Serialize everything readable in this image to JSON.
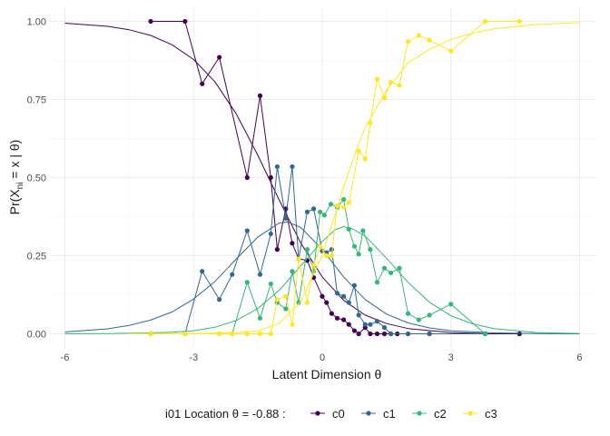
{
  "chart_data": {
    "type": "line",
    "xlabel": "Latent Dimension θ",
    "ylabel": {
      "prefix": "Pr(X",
      "sub": "ni",
      "suffix": " = x | θ)"
    },
    "xlim": [
      -6.35,
      6.35
    ],
    "ylim": [
      -0.045,
      1.045
    ],
    "xticks": [
      -6,
      -3,
      0,
      3,
      6
    ],
    "xtick_labels": [
      "-6",
      "-3",
      "0",
      "3",
      "6"
    ],
    "yticks": [
      0,
      0.25,
      0.5,
      0.75,
      1.0
    ],
    "ytick_labels": [
      "0.00",
      "0.25",
      "0.50",
      "0.75",
      "1.00"
    ],
    "grid": true,
    "legend": {
      "position": "bottom",
      "title": "i01 Location  θ = -0.88 :",
      "entries": [
        "c0",
        "c1",
        "c2",
        "c3"
      ]
    },
    "series": [
      {
        "name": "c0",
        "color": "#440154",
        "empirical": [
          [
            -4.0,
            1.0
          ],
          [
            -3.2,
            1.0
          ],
          [
            -2.8,
            0.8
          ],
          [
            -2.4,
            0.885
          ],
          [
            -1.75,
            0.5
          ],
          [
            -1.45,
            0.762
          ],
          [
            -1.2,
            0.5
          ],
          [
            -1.05,
            0.27
          ],
          [
            -0.85,
            0.4
          ],
          [
            -0.7,
            0.29
          ],
          [
            -0.55,
            0.24
          ],
          [
            -0.35,
            0.235
          ],
          [
            -0.2,
            0.18
          ],
          [
            0.0,
            0.12
          ],
          [
            0.1,
            0.1
          ],
          [
            0.22,
            0.065
          ],
          [
            0.35,
            0.05
          ],
          [
            0.5,
            0.045
          ],
          [
            0.62,
            0.03
          ],
          [
            0.75,
            0.01
          ],
          [
            0.85,
            0.0
          ],
          [
            1.0,
            0.02
          ],
          [
            1.12,
            0.0
          ],
          [
            1.28,
            0.0
          ],
          [
            1.45,
            0.0
          ],
          [
            1.6,
            0.0
          ],
          [
            1.75,
            0.0
          ],
          [
            2.0,
            0.0
          ],
          [
            2.5,
            0.0
          ],
          [
            3.8,
            0.0
          ],
          [
            4.6,
            0.0
          ]
        ],
        "model": [
          [
            -6.0,
            0.994
          ],
          [
            -5.0,
            0.984
          ],
          [
            -4.5,
            0.973
          ],
          [
            -4.0,
            0.955
          ],
          [
            -3.5,
            0.925
          ],
          [
            -3.0,
            0.878
          ],
          [
            -2.5,
            0.806
          ],
          [
            -2.0,
            0.703
          ],
          [
            -1.5,
            0.571
          ],
          [
            -1.0,
            0.427
          ],
          [
            -0.5,
            0.29
          ],
          [
            0.0,
            0.182
          ],
          [
            0.5,
            0.107
          ],
          [
            1.0,
            0.06
          ],
          [
            1.5,
            0.033
          ],
          [
            2.0,
            0.017
          ],
          [
            3.0,
            0.004
          ],
          [
            3.8,
            0.001
          ]
        ]
      },
      {
        "name": "c1",
        "color": "#31688E",
        "empirical": [
          [
            -4.0,
            0.0
          ],
          [
            -3.2,
            0.0
          ],
          [
            -2.8,
            0.2
          ],
          [
            -2.4,
            0.11
          ],
          [
            -2.1,
            0.19
          ],
          [
            -1.75,
            0.33
          ],
          [
            -1.45,
            0.19
          ],
          [
            -1.2,
            0.32
          ],
          [
            -1.05,
            0.535
          ],
          [
            -0.85,
            0.37
          ],
          [
            -0.7,
            0.535
          ],
          [
            -0.55,
            0.24
          ],
          [
            -0.35,
            0.39
          ],
          [
            -0.2,
            0.4
          ],
          [
            0.0,
            0.265
          ],
          [
            0.1,
            0.26
          ],
          [
            0.22,
            0.27
          ],
          [
            0.35,
            0.13
          ],
          [
            0.5,
            0.12
          ],
          [
            0.62,
            0.1
          ],
          [
            0.75,
            0.155
          ],
          [
            0.85,
            0.06
          ],
          [
            1.0,
            0.03
          ],
          [
            1.12,
            0.03
          ],
          [
            1.28,
            0.04
          ],
          [
            1.45,
            0.02
          ],
          [
            1.6,
            0.0
          ],
          [
            2.0,
            0.0
          ],
          [
            2.5,
            0.0
          ],
          [
            3.8,
            0.0
          ]
        ],
        "model": [
          [
            -6.0,
            0.006
          ],
          [
            -5.0,
            0.016
          ],
          [
            -4.5,
            0.027
          ],
          [
            -4.0,
            0.044
          ],
          [
            -3.5,
            0.07
          ],
          [
            -3.0,
            0.111
          ],
          [
            -2.5,
            0.168
          ],
          [
            -2.0,
            0.24
          ],
          [
            -1.5,
            0.31
          ],
          [
            -1.0,
            0.355
          ],
          [
            -0.8,
            0.358
          ],
          [
            -0.5,
            0.34
          ],
          [
            0.0,
            0.27
          ],
          [
            0.5,
            0.182
          ],
          [
            1.0,
            0.11
          ],
          [
            1.5,
            0.063
          ],
          [
            2.0,
            0.035
          ],
          [
            2.5,
            0.019
          ],
          [
            3.0,
            0.01
          ],
          [
            4.0,
            0.003
          ],
          [
            5.0,
            0.001
          ],
          [
            6.0,
            0.0
          ]
        ]
      },
      {
        "name": "c2",
        "color": "#35B779",
        "empirical": [
          [
            -4.0,
            0.0
          ],
          [
            -3.2,
            0.0
          ],
          [
            -2.4,
            0.0
          ],
          [
            -2.1,
            0.0
          ],
          [
            -1.75,
            0.165
          ],
          [
            -1.45,
            0.05
          ],
          [
            -1.2,
            0.16
          ],
          [
            -1.05,
            0.1
          ],
          [
            -0.85,
            0.08
          ],
          [
            -0.7,
            0.2
          ],
          [
            -0.55,
            0.1
          ],
          [
            -0.35,
            0.27
          ],
          [
            -0.2,
            0.2
          ],
          [
            -0.05,
            0.39
          ],
          [
            0.05,
            0.38
          ],
          [
            0.2,
            0.415
          ],
          [
            0.35,
            0.405
          ],
          [
            0.5,
            0.43
          ],
          [
            0.62,
            0.335
          ],
          [
            0.75,
            0.28
          ],
          [
            0.85,
            0.255
          ],
          [
            0.95,
            0.33
          ],
          [
            1.12,
            0.27
          ],
          [
            1.28,
            0.165
          ],
          [
            1.45,
            0.21
          ],
          [
            1.6,
            0.195
          ],
          [
            1.8,
            0.21
          ],
          [
            2.0,
            0.065
          ],
          [
            2.25,
            0.045
          ],
          [
            2.5,
            0.06
          ],
          [
            3.0,
            0.095
          ],
          [
            3.8,
            0.0
          ]
        ],
        "model": [
          [
            -6.0,
            0.0
          ],
          [
            -5.0,
            0.001
          ],
          [
            -4.0,
            0.003
          ],
          [
            -3.5,
            0.005
          ],
          [
            -3.0,
            0.01
          ],
          [
            -2.5,
            0.021
          ],
          [
            -2.0,
            0.043
          ],
          [
            -1.5,
            0.081
          ],
          [
            -1.0,
            0.14
          ],
          [
            -0.5,
            0.218
          ],
          [
            0.0,
            0.296
          ],
          [
            0.3,
            0.333
          ],
          [
            0.5,
            0.343
          ],
          [
            0.7,
            0.336
          ],
          [
            1.0,
            0.313
          ],
          [
            1.5,
            0.242
          ],
          [
            2.0,
            0.165
          ],
          [
            2.5,
            0.101
          ],
          [
            3.0,
            0.058
          ],
          [
            3.5,
            0.032
          ],
          [
            4.0,
            0.017
          ],
          [
            5.0,
            0.004
          ],
          [
            6.0,
            0.001
          ]
        ]
      },
      {
        "name": "c3",
        "color": "#FDE725",
        "empirical": [
          [
            -4.0,
            0.0
          ],
          [
            -3.2,
            0.0
          ],
          [
            -2.4,
            0.0
          ],
          [
            -2.1,
            0.0
          ],
          [
            -1.75,
            0.0
          ],
          [
            -1.45,
            0.0
          ],
          [
            -1.2,
            0.0
          ],
          [
            -1.05,
            0.11
          ],
          [
            -0.85,
            0.12
          ],
          [
            -0.7,
            0.03
          ],
          [
            -0.55,
            0.24
          ],
          [
            -0.35,
            0.1
          ],
          [
            -0.2,
            0.22
          ],
          [
            -0.05,
            0.28
          ],
          [
            0.1,
            0.25
          ],
          [
            0.22,
            0.25
          ],
          [
            0.35,
            0.41
          ],
          [
            0.5,
            0.405
          ],
          [
            0.62,
            0.42
          ],
          [
            0.85,
            0.585
          ],
          [
            1.0,
            0.56
          ],
          [
            1.12,
            0.675
          ],
          [
            1.28,
            0.815
          ],
          [
            1.45,
            0.755
          ],
          [
            1.6,
            0.805
          ],
          [
            1.8,
            0.795
          ],
          [
            2.0,
            0.935
          ],
          [
            2.25,
            0.955
          ],
          [
            2.5,
            0.94
          ],
          [
            3.0,
            0.905
          ],
          [
            3.8,
            1.0
          ],
          [
            4.6,
            1.0
          ]
        ],
        "model": [
          [
            -4.5,
            0.0
          ],
          [
            -4.0,
            0.001
          ],
          [
            -3.0,
            0.001
          ],
          [
            -2.5,
            0.002
          ],
          [
            -2.0,
            0.004
          ],
          [
            -1.5,
            0.01
          ],
          [
            -1.0,
            0.034
          ],
          [
            -0.5,
            0.103
          ],
          [
            0.0,
            0.252
          ],
          [
            0.3,
            0.38
          ],
          [
            0.5,
            0.47
          ],
          [
            0.8,
            0.59
          ],
          [
            1.0,
            0.66
          ],
          [
            1.5,
            0.78
          ],
          [
            2.0,
            0.867
          ],
          [
            2.5,
            0.91
          ],
          [
            3.0,
            0.942
          ],
          [
            3.5,
            0.962
          ],
          [
            4.0,
            0.976
          ],
          [
            5.0,
            0.99
          ],
          [
            6.0,
            0.996
          ]
        ]
      }
    ]
  }
}
